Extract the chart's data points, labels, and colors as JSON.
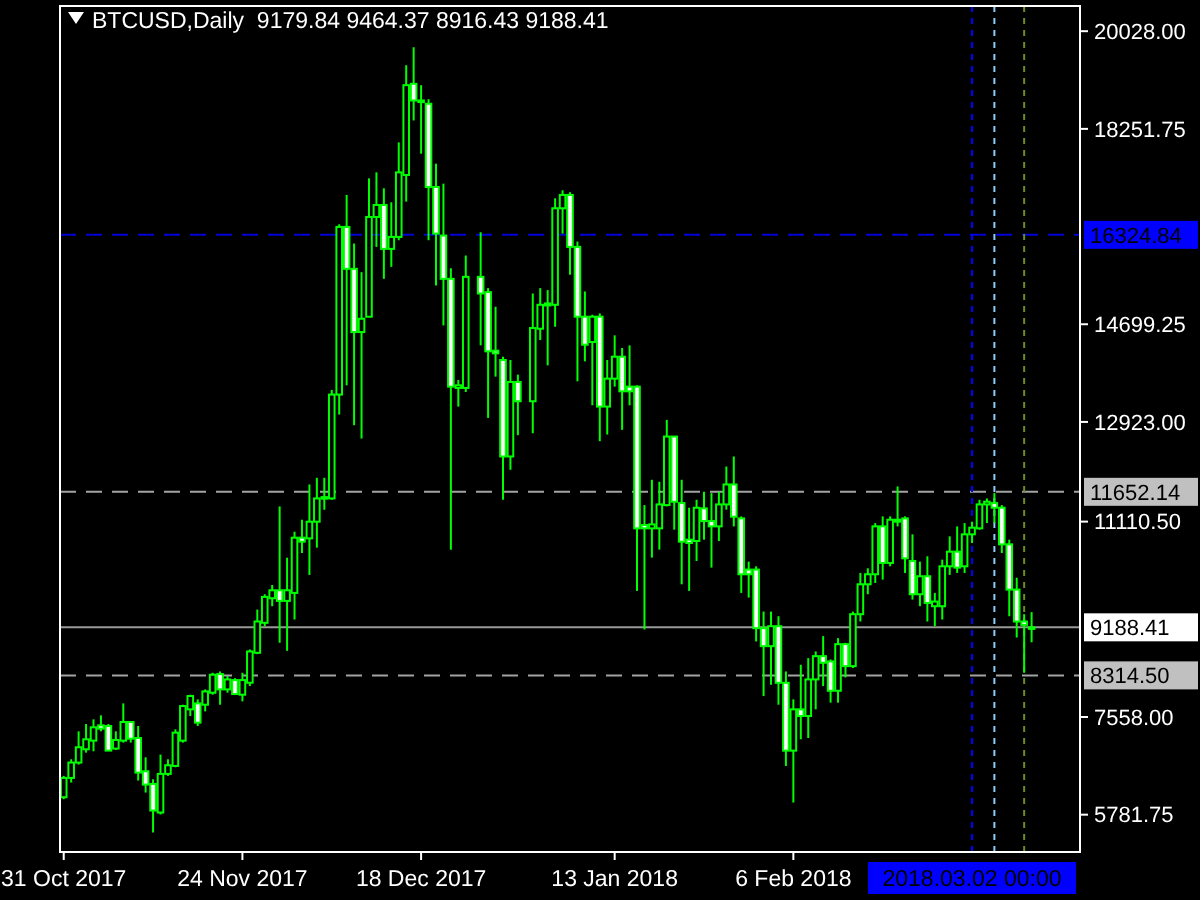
{
  "chart_data": {
    "type": "candlestick",
    "title": "BTCUSD,Daily  9179.84 9464.37 8916.43 9188.41",
    "color": "#00ff00",
    "x": [
      "2017-10-31",
      "2017-11-01",
      "2017-11-02",
      "2017-11-03",
      "2017-11-04",
      "2017-11-05",
      "2017-11-06",
      "2017-11-07",
      "2017-11-08",
      "2017-11-09",
      "2017-11-10",
      "2017-11-11",
      "2017-11-12",
      "2017-11-13",
      "2017-11-14",
      "2017-11-15",
      "2017-11-16",
      "2017-11-17",
      "2017-11-18",
      "2017-11-19",
      "2017-11-20",
      "2017-11-21",
      "2017-11-22",
      "2017-11-23",
      "2017-11-24",
      "2017-11-25",
      "2017-11-26",
      "2017-11-27",
      "2017-11-28",
      "2017-11-29",
      "2017-11-30",
      "2017-12-01",
      "2017-12-02",
      "2017-12-03",
      "2017-12-04",
      "2017-12-05",
      "2017-12-06",
      "2017-12-07",
      "2017-12-08",
      "2017-12-09",
      "2017-12-10",
      "2017-12-11",
      "2017-12-12",
      "2017-12-13",
      "2017-12-14",
      "2017-12-15",
      "2017-12-16",
      "2017-12-17",
      "2017-12-18",
      "2017-12-19",
      "2017-12-20",
      "2017-12-21",
      "2017-12-22",
      "2017-12-23",
      "2017-12-24",
      "2017-12-26",
      "2017-12-27",
      "2017-12-28",
      "2017-12-29",
      "2017-12-30",
      "2017-12-31",
      "2018-01-02",
      "2018-01-03",
      "2018-01-04",
      "2018-01-05",
      "2018-01-06",
      "2018-01-07",
      "2018-01-08",
      "2018-01-09",
      "2018-01-10",
      "2018-01-11",
      "2018-01-12",
      "2018-01-13",
      "2018-01-14",
      "2018-01-15",
      "2018-01-16",
      "2018-01-17",
      "2018-01-18",
      "2018-01-19",
      "2018-01-20",
      "2018-01-21",
      "2018-01-22",
      "2018-01-23",
      "2018-01-24",
      "2018-01-25",
      "2018-01-26",
      "2018-01-27",
      "2018-01-28",
      "2018-01-29",
      "2018-01-30",
      "2018-01-31",
      "2018-02-01",
      "2018-02-02",
      "2018-02-03",
      "2018-02-04",
      "2018-02-05",
      "2018-02-06",
      "2018-02-07",
      "2018-02-08",
      "2018-02-09",
      "2018-02-10",
      "2018-02-11",
      "2018-02-12",
      "2018-02-13",
      "2018-02-14",
      "2018-02-15",
      "2018-02-16",
      "2018-02-17",
      "2018-02-18",
      "2018-02-19",
      "2018-02-20",
      "2018-02-21",
      "2018-02-22",
      "2018-02-23",
      "2018-02-24",
      "2018-02-25",
      "2018-02-26",
      "2018-02-27",
      "2018-02-28",
      "2018-03-01",
      "2018-03-02",
      "2018-03-03",
      "2018-03-04",
      "2018-03-05",
      "2018-03-06",
      "2018-03-07",
      "2018-03-08",
      "2018-03-09",
      "2018-03-10"
    ],
    "ohlc": [
      [
        6099,
        6487,
        6063,
        6450
      ],
      [
        6450,
        6789,
        6366,
        6729
      ],
      [
        6729,
        7297,
        6692,
        7007
      ],
      [
        6971,
        7430,
        6910,
        7152
      ],
      [
        7128,
        7515,
        6934,
        7370
      ],
      [
        7406,
        7588,
        7297,
        7346
      ],
      [
        7394,
        7430,
        6940,
        6947
      ],
      [
        6983,
        7297,
        6958,
        7140
      ],
      [
        7128,
        7805,
        7092,
        7467
      ],
      [
        7467,
        7479,
        7092,
        7164
      ],
      [
        7176,
        7394,
        6402,
        6547
      ],
      [
        6571,
        6825,
        6184,
        6329
      ],
      [
        6341,
        6426,
        5458,
        5857
      ],
      [
        5821,
        6874,
        5785,
        6523
      ],
      [
        6523,
        6789,
        6487,
        6680
      ],
      [
        6668,
        7334,
        6644,
        7273
      ],
      [
        7128,
        7781,
        7092,
        7757
      ],
      [
        7697,
        7963,
        7576,
        7939
      ],
      [
        7805,
        7878,
        7394,
        7455
      ],
      [
        7781,
        8060,
        7660,
        8023
      ],
      [
        7999,
        8362,
        7963,
        8326
      ],
      [
        8338,
        8386,
        7781,
        8060
      ],
      [
        8060,
        8302,
        7999,
        8241
      ],
      [
        8229,
        8265,
        7963,
        7975
      ],
      [
        7963,
        8362,
        7842,
        8229
      ],
      [
        8181,
        8785,
        8120,
        8749
      ],
      [
        8725,
        9511,
        8701,
        9294
      ],
      [
        9270,
        9790,
        9209,
        9741
      ],
      [
        9717,
        9959,
        9572,
        9862
      ],
      [
        9862,
        11387,
        8907,
        9669
      ],
      [
        9669,
        10455,
        8761,
        9862
      ],
      [
        9814,
        10927,
        9330,
        10818
      ],
      [
        10818,
        11145,
        10540,
        10746
      ],
      [
        10806,
        11786,
        10141,
        11109
      ],
      [
        11109,
        11907,
        10637,
        11532
      ],
      [
        11532,
        11907,
        11326,
        11556
      ],
      [
        11532,
        13505,
        11508,
        13420
      ],
      [
        13420,
        16517,
        13057,
        16469
      ],
      [
        16469,
        17050,
        13589,
        15707
      ],
      [
        15707,
        16167,
        12863,
        14557
      ],
      [
        14557,
        15646,
        12621,
        14799
      ],
      [
        14836,
        17352,
        14836,
        16650
      ],
      [
        16650,
        17461,
        16106,
        16868
      ],
      [
        16868,
        17171,
        15525,
        16070
      ],
      [
        16070,
        16917,
        15743,
        16287
      ],
      [
        16287,
        18006,
        16227,
        17461
      ],
      [
        17413,
        19409,
        16929,
        19046
      ],
      [
        19071,
        19736,
        18405,
        18768
      ],
      [
        18768,
        19046,
        17800,
        18744
      ],
      [
        18708,
        18792,
        16227,
        17195
      ],
      [
        17195,
        17619,
        15404,
        16348
      ],
      [
        16312,
        17256,
        14678,
        15525
      ],
      [
        15525,
        15719,
        10601,
        13565
      ],
      [
        13541,
        13686,
        13202,
        13589
      ],
      [
        13541,
        15949,
        13468,
        15561
      ],
      [
        15561,
        16372,
        14315,
        15259
      ],
      [
        15283,
        15356,
        12996,
        14207
      ],
      [
        14218,
        15017,
        13747,
        14170
      ],
      [
        14049,
        14109,
        11508,
        12295
      ],
      [
        12295,
        14049,
        12053,
        13650
      ],
      [
        13650,
        13783,
        12682,
        13299
      ],
      [
        13299,
        15259,
        12718,
        14630
      ],
      [
        14618,
        15356,
        14412,
        15053
      ],
      [
        15078,
        15320,
        13952,
        15041
      ],
      [
        15053,
        16989,
        14654,
        16808
      ],
      [
        16808,
        17135,
        16348,
        17050
      ],
      [
        17050,
        17098,
        15598,
        16106
      ],
      [
        16106,
        16203,
        13662,
        14836
      ],
      [
        14836,
        15295,
        14025,
        14327
      ],
      [
        14376,
        14872,
        13226,
        14836
      ],
      [
        14836,
        14896,
        12573,
        13202
      ],
      [
        13202,
        14049,
        12694,
        13710
      ],
      [
        13710,
        14497,
        13565,
        14109
      ],
      [
        14109,
        14267,
        12779,
        13480
      ],
      [
        13565,
        14315,
        13226,
        13480
      ],
      [
        13565,
        13589,
        9850,
        10988
      ],
      [
        11048,
        11411,
        9149,
        10988
      ],
      [
        10988,
        11871,
        10456,
        11060
      ],
      [
        10988,
        11835,
        10601,
        11423
      ],
      [
        11411,
        12960,
        11387,
        12657
      ],
      [
        12657,
        12657,
        10964,
        11472
      ],
      [
        11447,
        11871,
        9971,
        10746
      ],
      [
        10782,
        11363,
        9850,
        10722
      ],
      [
        10758,
        11508,
        10395,
        11363
      ],
      [
        11351,
        11653,
        10782,
        11121
      ],
      [
        11121,
        11629,
        10274,
        11024
      ],
      [
        11024,
        11653,
        10758,
        11423
      ],
      [
        11423,
        12113,
        11327,
        11786
      ],
      [
        11786,
        12295,
        11024,
        11200
      ],
      [
        11169,
        11206,
        9814,
        10153
      ],
      [
        10238,
        10383,
        9729,
        10153
      ],
      [
        10238,
        10298,
        8931,
        9173
      ],
      [
        9173,
        9475,
        7938,
        8846
      ],
      [
        8846,
        9475,
        8144,
        9209
      ],
      [
        9209,
        9390,
        7781,
        8180
      ],
      [
        8180,
        8386,
        6668,
        6946
      ],
      [
        6946,
        7878,
        6002,
        7697
      ],
      [
        7697,
        8507,
        7152,
        7576
      ],
      [
        7576,
        8628,
        7176,
        8241
      ],
      [
        8241,
        8749,
        7697,
        8664
      ],
      [
        8664,
        9028,
        8120,
        8543
      ],
      [
        8568,
        8604,
        7818,
        8035
      ],
      [
        8035,
        8991,
        7818,
        8882
      ],
      [
        8882,
        8906,
        8277,
        8483
      ],
      [
        8483,
        9475,
        8447,
        9427
      ],
      [
        9427,
        10177,
        9294,
        9971
      ],
      [
        9971,
        10262,
        9790,
        10153
      ],
      [
        10153,
        11084,
        9995,
        11024
      ],
      [
        11024,
        11206,
        10056,
        10359
      ],
      [
        10359,
        11206,
        10298,
        11145
      ],
      [
        11145,
        11750,
        11024,
        11109
      ],
      [
        11169,
        11206,
        10177,
        10443
      ],
      [
        10395,
        10879,
        9693,
        9790
      ],
      [
        9790,
        10383,
        9572,
        10117
      ],
      [
        10117,
        10480,
        9294,
        9632
      ],
      [
        9572,
        9814,
        9209,
        9657
      ],
      [
        9572,
        10419,
        9330,
        10298
      ],
      [
        10298,
        10843,
        10141,
        10564
      ],
      [
        10564,
        11024,
        10177,
        10274
      ],
      [
        10298,
        11084,
        10177,
        10879
      ],
      [
        10879,
        11109,
        10722,
        11000
      ],
      [
        10988,
        11508,
        10964,
        11423
      ],
      [
        11423,
        11532,
        11084,
        11472
      ],
      [
        11447,
        11629,
        11084,
        11363
      ],
      [
        11363,
        11411,
        10540,
        10697
      ],
      [
        10697,
        10782,
        9390,
        9874
      ],
      [
        9874,
        10092,
        9003,
        9294
      ],
      [
        9294,
        9427,
        8362,
        9233
      ],
      [
        9179.84,
        9464.37,
        8916.43,
        9188.41
      ]
    ],
    "xlim": [
      "2017-10-30T12:00",
      "2018-03-16T12:00"
    ],
    "ylim": [
      5103,
      20486
    ],
    "yticks": [
      {
        "value": 5781.75,
        "label": "5781.75"
      },
      {
        "value": 7558,
        "label": "7558.00"
      },
      {
        "value": 11110.5,
        "label": "11110.50"
      },
      {
        "value": 12923,
        "label": "12923.00"
      },
      {
        "value": 14699.25,
        "label": "14699.25"
      },
      {
        "value": 18251.75,
        "label": "18251.75"
      },
      {
        "value": 20028,
        "label": "20028.00"
      }
    ],
    "xticks": [
      {
        "value": "2017-10-31",
        "label": "31 Oct 2017"
      },
      {
        "value": "2017-11-24",
        "label": "24 Nov 2017"
      },
      {
        "value": "2017-12-18",
        "label": "18 Dec 2017"
      },
      {
        "value": "2018-01-13",
        "label": "13 Jan 2018"
      },
      {
        "value": "2018-02-06",
        "label": "6 Feb 2018"
      }
    ],
    "ref_lines": [
      {
        "axis": "y",
        "value": 16324.84,
        "label": "16324.84",
        "color": "#0000ff",
        "line_style": "dashed"
      },
      {
        "axis": "y",
        "value": 11652.14,
        "label": "11652.14",
        "color": "#c0c0c0",
        "line_style": "dashed"
      },
      {
        "axis": "y",
        "value": 9188.41,
        "label": "9188.41",
        "color": "#ffffff",
        "line_style": "solid"
      },
      {
        "axis": "y",
        "value": 8314.5,
        "label": "8314.50",
        "color": "#c0c0c0",
        "line_style": "dashed"
      },
      {
        "axis": "x",
        "value": "2018-03-02",
        "label": "2018.03.02 00:00",
        "color": "#0000ff",
        "line_style": "dashed"
      },
      {
        "axis": "x",
        "value": "2018-03-05",
        "label": null,
        "color": "#87cefa",
        "line_style": "dashed"
      },
      {
        "axis": "x",
        "value": "2018-03-09",
        "label": null,
        "color": "#6b8e23",
        "line_style": "dashed"
      }
    ]
  }
}
